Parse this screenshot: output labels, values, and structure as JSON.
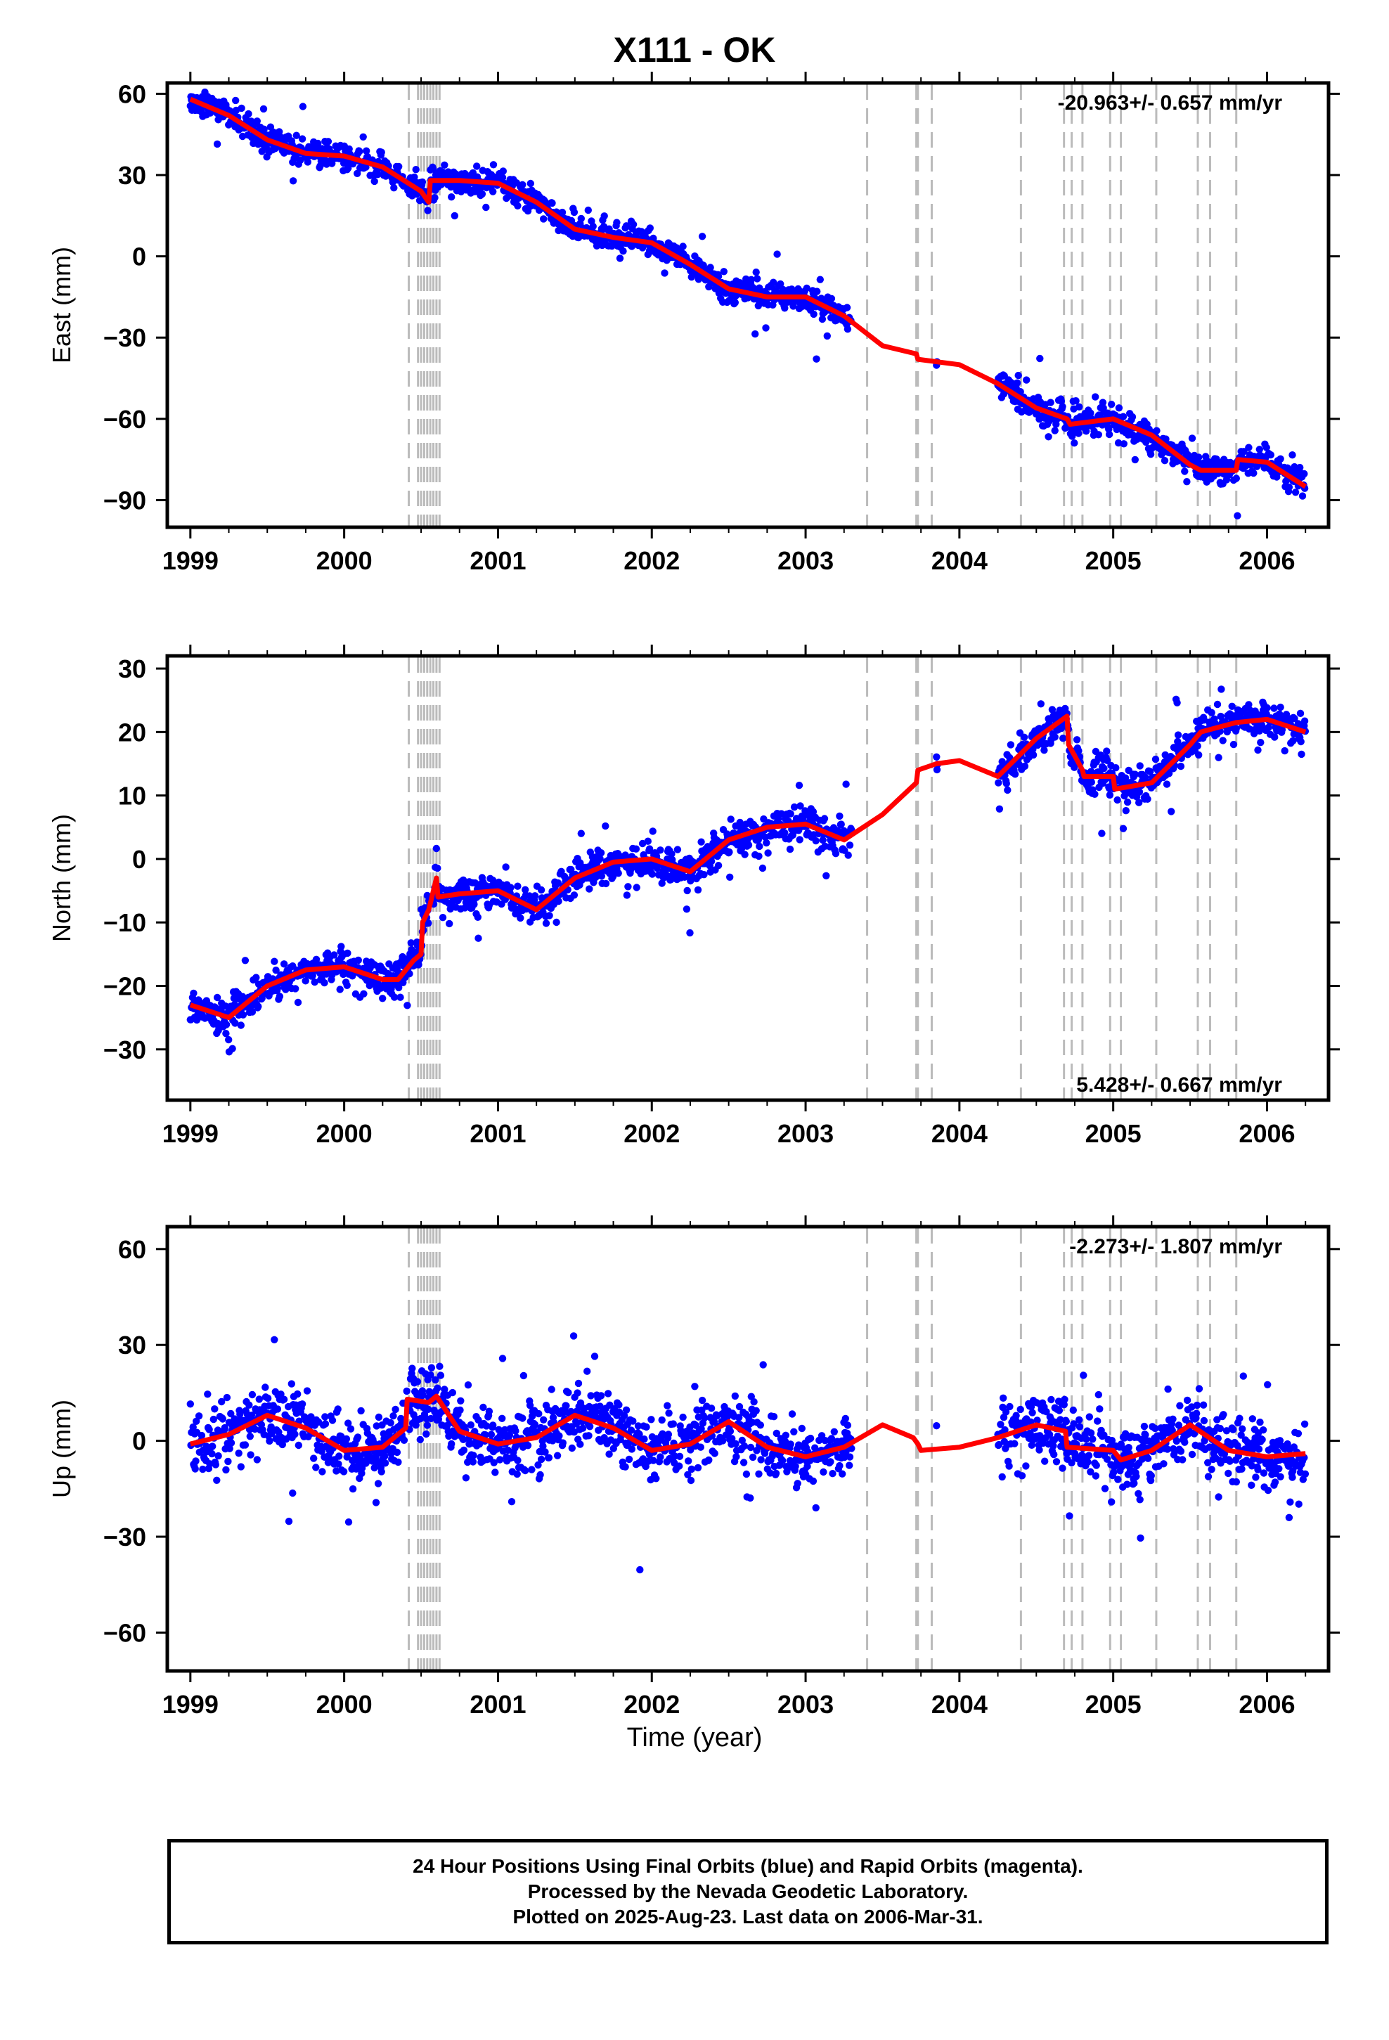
{
  "title": "X111 - OK",
  "xlabel": "Time (year)",
  "footer": {
    "line1": "24 Hour Positions Using Final Orbits (blue) and Rapid Orbits (magenta).",
    "line2": "Processed by the Nevada Geodetic Laboratory.",
    "line3": "Plotted on 2025-Aug-23. Last data on 2006-Mar-31."
  },
  "colors": {
    "data": "#0000ff",
    "model": "#ff0000",
    "step": "#bbbbbb",
    "frame": "#000000"
  },
  "chart_data": [
    {
      "type": "scatter",
      "ylabel": "East (mm)",
      "rate_label": "-20.963+/- 0.657 mm/yr",
      "xlim": [
        1998.85,
        2006.4
      ],
      "ylim": [
        -100,
        64
      ],
      "xticks": [
        1999,
        2000,
        2001,
        2002,
        2003,
        2004,
        2005,
        2006
      ],
      "yticks": [
        60,
        30,
        0,
        -30,
        -60,
        -90
      ],
      "grid": false,
      "model": [
        [
          1999.0,
          58
        ],
        [
          1999.25,
          52
        ],
        [
          1999.5,
          43
        ],
        [
          1999.75,
          38
        ],
        [
          2000.0,
          37
        ],
        [
          2000.25,
          33
        ],
        [
          2000.5,
          24
        ],
        [
          2000.55,
          20
        ],
        [
          2000.56,
          28
        ],
        [
          2000.75,
          28
        ],
        [
          2001.0,
          27
        ],
        [
          2001.25,
          20
        ],
        [
          2001.5,
          10
        ],
        [
          2001.75,
          7
        ],
        [
          2002.0,
          5
        ],
        [
          2002.25,
          -3
        ],
        [
          2002.5,
          -12
        ],
        [
          2002.75,
          -15
        ],
        [
          2003.0,
          -15
        ],
        [
          2003.25,
          -22
        ],
        [
          2003.5,
          -33
        ],
        [
          2003.72,
          -36
        ],
        [
          2003.73,
          -38
        ],
        [
          2004.0,
          -40
        ],
        [
          2004.25,
          -47
        ],
        [
          2004.5,
          -56
        ],
        [
          2004.7,
          -60
        ],
        [
          2004.72,
          -62
        ],
        [
          2005.0,
          -60
        ],
        [
          2005.25,
          -66
        ],
        [
          2005.5,
          -77
        ],
        [
          2005.57,
          -79
        ],
        [
          2005.8,
          -79
        ],
        [
          2005.81,
          -75
        ],
        [
          2006.0,
          -76
        ],
        [
          2006.25,
          -85
        ]
      ],
      "noise": 4
    },
    {
      "type": "scatter",
      "ylabel": "North (mm)",
      "rate_label": "5.428+/- 0.667 mm/yr",
      "xlim": [
        1998.85,
        2006.4
      ],
      "ylim": [
        -38,
        32
      ],
      "xticks": [
        1999,
        2000,
        2001,
        2002,
        2003,
        2004,
        2005,
        2006
      ],
      "yticks": [
        30,
        20,
        10,
        0,
        -10,
        -20,
        -30
      ],
      "grid": false,
      "model": [
        [
          1999.0,
          -23
        ],
        [
          1999.25,
          -25
        ],
        [
          1999.5,
          -20
        ],
        [
          1999.75,
          -17.5
        ],
        [
          2000.0,
          -17
        ],
        [
          2000.25,
          -19
        ],
        [
          2000.35,
          -19
        ],
        [
          2000.45,
          -16
        ],
        [
          2000.5,
          -15
        ],
        [
          2000.51,
          -10
        ],
        [
          2000.55,
          -8
        ],
        [
          2000.6,
          -3
        ],
        [
          2000.61,
          -6
        ],
        [
          2000.75,
          -5.5
        ],
        [
          2001.0,
          -5
        ],
        [
          2001.25,
          -8
        ],
        [
          2001.5,
          -3
        ],
        [
          2001.75,
          -0.5
        ],
        [
          2002.0,
          0
        ],
        [
          2002.25,
          -2
        ],
        [
          2002.5,
          3
        ],
        [
          2002.75,
          5
        ],
        [
          2003.0,
          5.5
        ],
        [
          2003.25,
          3
        ],
        [
          2003.5,
          7
        ],
        [
          2003.72,
          12
        ],
        [
          2003.73,
          14
        ],
        [
          2003.85,
          15
        ],
        [
          2004.0,
          15.5
        ],
        [
          2004.25,
          13
        ],
        [
          2004.5,
          19
        ],
        [
          2004.7,
          22.5
        ],
        [
          2004.71,
          18
        ],
        [
          2004.8,
          14
        ],
        [
          2004.81,
          13
        ],
        [
          2005.0,
          13
        ],
        [
          2005.01,
          11
        ],
        [
          2005.25,
          12
        ],
        [
          2005.5,
          18
        ],
        [
          2005.57,
          20
        ],
        [
          2005.8,
          21.5
        ],
        [
          2006.0,
          22
        ],
        [
          2006.25,
          20
        ]
      ],
      "noise": 2.2
    },
    {
      "type": "scatter",
      "ylabel": "Up (mm)",
      "rate_label": "-2.273+/- 1.807 mm/yr",
      "xlim": [
        1998.85,
        2006.4
      ],
      "ylim": [
        -72,
        67
      ],
      "xticks": [
        1999,
        2000,
        2001,
        2002,
        2003,
        2004,
        2005,
        2006
      ],
      "yticks": [
        60,
        30,
        0,
        -30,
        -60
      ],
      "grid": false,
      "model": [
        [
          1999.0,
          -1
        ],
        [
          1999.25,
          2
        ],
        [
          1999.5,
          8
        ],
        [
          1999.75,
          4
        ],
        [
          2000.0,
          -3
        ],
        [
          2000.25,
          -2
        ],
        [
          2000.4,
          4
        ],
        [
          2000.41,
          13
        ],
        [
          2000.55,
          12
        ],
        [
          2000.6,
          14
        ],
        [
          2000.75,
          3
        ],
        [
          2001.0,
          -1
        ],
        [
          2001.25,
          1
        ],
        [
          2001.5,
          8
        ],
        [
          2001.75,
          4
        ],
        [
          2002.0,
          -3
        ],
        [
          2002.25,
          -1
        ],
        [
          2002.5,
          6
        ],
        [
          2002.75,
          -2
        ],
        [
          2003.0,
          -5
        ],
        [
          2003.25,
          -2
        ],
        [
          2003.5,
          5
        ],
        [
          2003.7,
          1
        ],
        [
          2003.73,
          -1
        ],
        [
          2003.75,
          -3
        ],
        [
          2004.0,
          -2
        ],
        [
          2004.25,
          1
        ],
        [
          2004.5,
          5
        ],
        [
          2004.69,
          3
        ],
        [
          2004.7,
          -2
        ],
        [
          2005.0,
          -3
        ],
        [
          2005.05,
          -6
        ],
        [
          2005.25,
          -3
        ],
        [
          2005.5,
          5
        ],
        [
          2005.75,
          -3
        ],
        [
          2006.0,
          -5
        ],
        [
          2006.25,
          -4
        ]
      ],
      "noise": 8
    }
  ],
  "data_coverage": [
    [
      1999.0,
      2003.3
    ],
    [
      2003.85,
      2003.86
    ],
    [
      2004.25,
      2006.25
    ]
  ],
  "step_epochs": [
    2000.42,
    2000.48,
    2000.5,
    2000.52,
    2000.54,
    2000.56,
    2000.58,
    2000.6,
    2000.62,
    2003.4,
    2003.72,
    2003.73,
    2003.82,
    2004.4,
    2004.68,
    2004.73,
    2004.8,
    2004.98,
    2005.05,
    2005.28,
    2005.55,
    2005.63,
    2005.8
  ]
}
